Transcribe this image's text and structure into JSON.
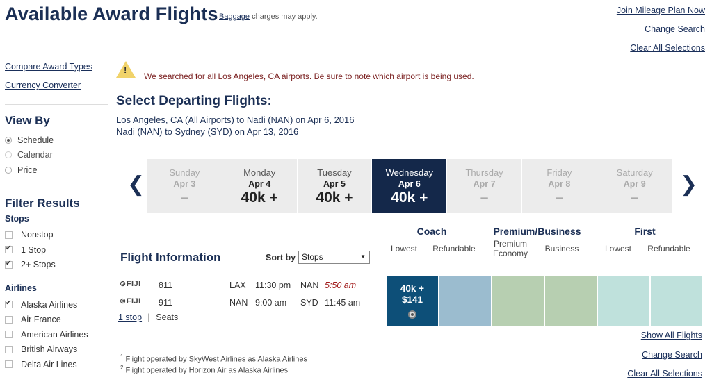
{
  "header": {
    "title": "Available Award Flights",
    "baggage_link": "Baggage",
    "baggage_note": " charges may apply."
  },
  "top_links": [
    "Join Mileage Plan Now",
    "Change Search",
    "Clear All Selections"
  ],
  "sidebar": {
    "links": [
      "Compare Award Types",
      "Currency Converter"
    ],
    "view_by": {
      "heading": "View By",
      "options": [
        {
          "label": "Schedule",
          "selected": true
        },
        {
          "label": "Calendar",
          "selected": false
        },
        {
          "label": "Price",
          "selected": false
        }
      ]
    },
    "filter": {
      "heading": "Filter Results",
      "stops_heading": "Stops",
      "stops": [
        {
          "label": "Nonstop",
          "checked": false
        },
        {
          "label": "1 Stop",
          "checked": true
        },
        {
          "label": "2+ Stops",
          "checked": true
        }
      ],
      "airlines_heading": "Airlines",
      "airlines": [
        {
          "label": "Alaska Airlines",
          "checked": true
        },
        {
          "label": "Air France",
          "checked": false
        },
        {
          "label": "American Airlines",
          "checked": false
        },
        {
          "label": "British Airways",
          "checked": false
        },
        {
          "label": "Delta Air Lines",
          "checked": false
        }
      ]
    }
  },
  "alert": {
    "icon": "warning-icon",
    "text": "We searched for all Los Angeles, CA airports. Be sure to note which airport is being used."
  },
  "main": {
    "title": "Select Departing Flights:",
    "routes": [
      "Los Angeles, CA (All Airports) to Nadi (NAN) on Apr 6, 2016",
      "Nadi (NAN) to Sydney (SYD) on Apr 13, 2016"
    ]
  },
  "dates": [
    {
      "day": "Sunday",
      "date": "Apr 3",
      "price": "–",
      "state": "dim"
    },
    {
      "day": "Monday",
      "date": "Apr 4",
      "price": "40k +",
      "state": "normal"
    },
    {
      "day": "Tuesday",
      "date": "Apr 5",
      "price": "40k +",
      "state": "normal"
    },
    {
      "day": "Wednesday",
      "date": "Apr 6",
      "price": "40k +",
      "state": "selected"
    },
    {
      "day": "Thursday",
      "date": "Apr 7",
      "price": "–",
      "state": "dim"
    },
    {
      "day": "Friday",
      "date": "Apr 8",
      "price": "–",
      "state": "dim"
    },
    {
      "day": "Saturday",
      "date": "Apr 9",
      "price": "–",
      "state": "dim"
    }
  ],
  "fare_classes": {
    "coach": "Coach",
    "premium": "Premium/Business",
    "first": "First",
    "coach_lowest": "Lowest",
    "coach_refundable": "Refundable",
    "premium_economy": "Premium Economy",
    "business": "Business",
    "first_lowest": "Lowest",
    "first_refundable": "Refundable"
  },
  "flight_info": {
    "title": "Flight Information",
    "sort_label": "Sort by",
    "sort_value": "Stops"
  },
  "flight": {
    "segments": [
      {
        "airline": "FIJI",
        "flight": "811",
        "from": "LAX",
        "dep": "11:30 pm",
        "to": "NAN",
        "arr": "5:50 am"
      },
      {
        "airline": "FIJI",
        "flight": "911",
        "from": "NAN",
        "dep": "9:00 am",
        "to": "SYD",
        "arr": "11:45 am"
      }
    ],
    "stops_link": "1 stop",
    "separator": "|",
    "seats": "Seats",
    "fare_miles": "40k +",
    "fare_cash": "$141"
  },
  "colors": {
    "coach_refundable": "#9bbccf",
    "premium": "#b7cfb1",
    "first": "#bfe1dc",
    "selected_fare": "#0d4f78",
    "selected_date": "#14284a"
  },
  "footnotes": [
    {
      "num": "1",
      "text": "Flight operated by SkyWest Airlines as Alaska Airlines"
    },
    {
      "num": "2",
      "text": "Flight operated by Horizon Air as Alaska Airlines"
    }
  ],
  "bottom_links": [
    "Show All Flights",
    "Change Search",
    "Clear All Selections"
  ]
}
